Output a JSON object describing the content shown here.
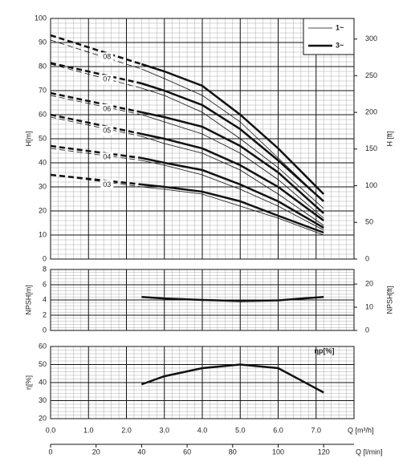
{
  "chart_data": [
    {
      "type": "line",
      "ylabel": "H[m]",
      "y2label": "H [ft]",
      "xlim": [
        0,
        8
      ],
      "ylim": [
        0,
        100
      ],
      "yticks": [
        0,
        10,
        20,
        30,
        40,
        50,
        60,
        70,
        80,
        90,
        100
      ],
      "y2lim": [
        0,
        328.08
      ],
      "y2ticks": [
        0,
        50,
        100,
        150,
        200,
        250,
        300
      ],
      "x": [
        0,
        2.4,
        3,
        4,
        5,
        6,
        7.2
      ],
      "groups": [
        {
          "label": "1~",
          "line_width": 0.8,
          "curves": [
            [
              91,
              79,
              75,
              68,
              57,
              42,
              24
            ],
            [
              81,
              71,
              68,
              61,
              50,
              38,
              21
            ],
            [
              68,
              60,
              57,
              52,
              44,
              33,
              17
            ],
            [
              59,
              51,
              48,
              44,
              37,
              27,
              14
            ],
            [
              46,
              41,
              39,
              35,
              29,
              22,
              12
            ],
            [
              35,
              30,
              29,
              27,
              22,
              17,
              10
            ]
          ]
        },
        {
          "label": "3~",
          "line_width": 2.5,
          "curves": [
            [
              93,
              81,
              78,
              72,
              60,
              46,
              27
            ],
            [
              81.5,
              73,
              70,
              64,
              54,
              41,
              24
            ],
            [
              69,
              61,
              59,
              55,
              47,
              36,
              19
            ],
            [
              60,
              52,
              50,
              46,
              39,
              30,
              16
            ],
            [
              47,
              42,
              40,
              37,
              31,
              24,
              13
            ],
            [
              35,
              31,
              30,
              28,
              24,
              18,
              11
            ]
          ]
        }
      ],
      "curve_labels": [
        "08",
        "07",
        "06",
        "05",
        "04",
        "03"
      ],
      "legend": "upper right",
      "grid": true
    },
    {
      "type": "line",
      "ylabel": "NPSH[m]",
      "y2label": "NPSH[ft]",
      "xlim": [
        0,
        8
      ],
      "ylim": [
        0,
        8
      ],
      "yticks": [
        0,
        2,
        4,
        6,
        8
      ],
      "y2lim": [
        0,
        26.25
      ],
      "y2ticks": [
        0,
        10,
        20
      ],
      "x": [
        2.4,
        3,
        4,
        5,
        6,
        7.2
      ],
      "values": [
        4.4,
        4.2,
        4.0,
        3.85,
        3.95,
        4.4
      ],
      "line_width": 2.5,
      "grid": true
    },
    {
      "type": "line",
      "ylabel": "η[%]",
      "annotation": "ηp[%]",
      "xlabel": "Q [m³/h]",
      "x2label": "Q [l/min]",
      "xlim": [
        0,
        8
      ],
      "ylim": [
        20,
        60
      ],
      "yticks": [
        20,
        30,
        40,
        50,
        60
      ],
      "xticks": [
        {
          "value": 0,
          "label": "0.0"
        },
        {
          "value": 1,
          "label": "1.0"
        },
        {
          "value": 2,
          "label": "2.0"
        },
        {
          "value": 3,
          "label": "3.0"
        },
        {
          "value": 4,
          "label": "4.0"
        },
        {
          "value": 5,
          "label": "5.0"
        },
        {
          "value": 6,
          "label": "6.0"
        },
        {
          "value": 7,
          "label": "7.0"
        }
      ],
      "x2lim": [
        0,
        133.33
      ],
      "x2ticks": [
        0,
        20,
        40,
        60,
        80,
        100,
        120
      ],
      "x": [
        2.4,
        3,
        4,
        5,
        6,
        7.2
      ],
      "values": [
        39,
        43.5,
        48,
        50,
        48,
        34.5
      ],
      "line_width": 2.5,
      "grid": true
    }
  ]
}
